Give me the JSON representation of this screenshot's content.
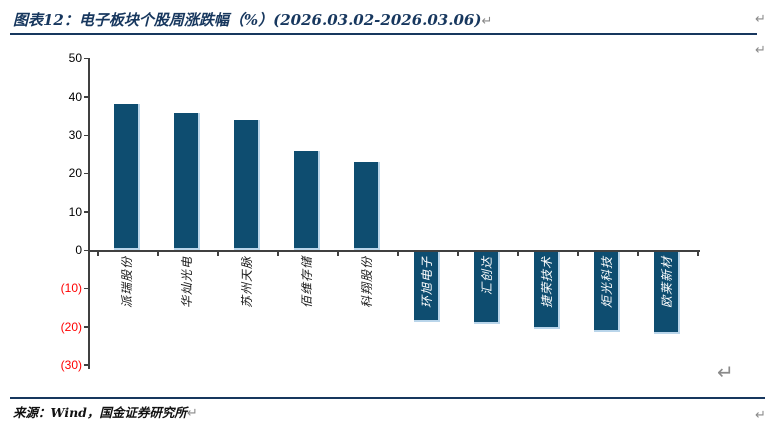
{
  "page": {
    "title": "图表12：电子板块个股周涨跌幅（%）(2026.03.02-2026.03.06)",
    "source_line": "来源：Wind，国金证券研究所",
    "return_mark": "↵"
  },
  "colors": {
    "bar_fill": "#0e4d70",
    "bar_edge": "#b9d5ea",
    "title_navy": "#17375e",
    "rule_navy": "#17375e",
    "axis_gray": "#404040",
    "tick_label_positive": "#000000",
    "tick_label_negative": "#ff0000",
    "bar_label_positive": "#1a1a1a",
    "bar_label_negative": "#ffffff",
    "return_mark_gray": "#8a8a8a"
  },
  "chart_data": {
    "type": "bar",
    "title": "电子板块个股周涨跌幅（%）",
    "period": "2026.03.02-2026.03.06",
    "categories": [
      "派瑞股份",
      "华灿光电",
      "苏州天脉",
      "佰维存储",
      "科翔股份",
      "环旭电子",
      "汇创达",
      "捷荣技术",
      "炬光科技",
      "欧莱新材"
    ],
    "values": [
      38.1,
      35.7,
      33.9,
      25.9,
      23.0,
      -18.4,
      -19.1,
      -20.4,
      -21.1,
      -21.7
    ],
    "ylim": [
      -30,
      50
    ],
    "ytick_interval": 10,
    "yticks": [
      50,
      40,
      30,
      20,
      10,
      0,
      -10,
      -20,
      -30
    ],
    "ytick_labels": [
      "50",
      "40",
      "30",
      "20",
      "10",
      "0",
      "(10)",
      "(20)",
      "(30)"
    ],
    "xlabel": "",
    "ylabel": "",
    "grid": false,
    "legend": false,
    "note": "negative ticks shown red in parentheses; category labels rotated 90°, white when inside negative bars"
  }
}
